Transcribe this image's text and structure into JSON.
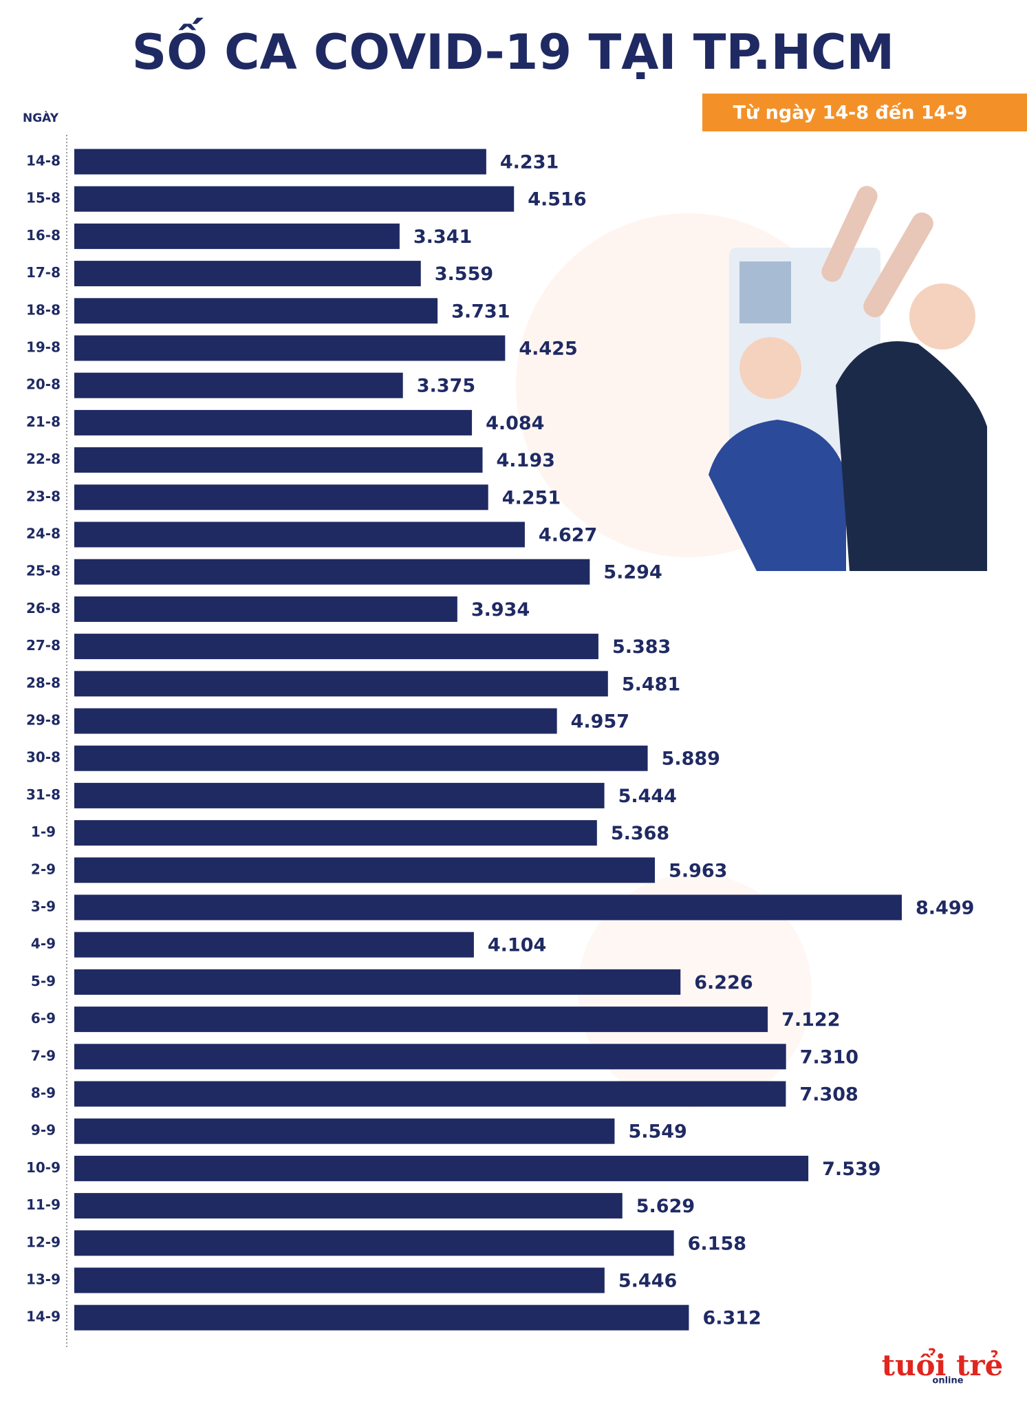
{
  "chart_data": {
    "type": "bar",
    "orientation": "horizontal",
    "title": "SỐ CA COVID-19 TẠI TP.HCM",
    "subtitle": "Từ ngày 14-8 đến 14-9",
    "category_axis_label": "NGÀY",
    "color": "#1f2a63",
    "categories": [
      "14-8",
      "15-8",
      "16-8",
      "17-8",
      "18-8",
      "19-8",
      "20-8",
      "21-8",
      "22-8",
      "23-8",
      "24-8",
      "25-8",
      "26-8",
      "27-8",
      "28-8",
      "29-8",
      "30-8",
      "31-8",
      "1-9",
      "2-9",
      "3-9",
      "4-9",
      "5-9",
      "6-9",
      "7-9",
      "8-9",
      "9-9",
      "10-9",
      "11-9",
      "12-9",
      "13-9",
      "14-9"
    ],
    "values": [
      4231,
      4516,
      3341,
      3559,
      3731,
      4425,
      3375,
      4084,
      4193,
      4251,
      4627,
      5294,
      3934,
      5383,
      5481,
      4957,
      5889,
      5444,
      5368,
      5963,
      8499,
      4104,
      6226,
      7122,
      7310,
      7308,
      5549,
      7539,
      5629,
      6158,
      5446,
      6312
    ],
    "value_labels": [
      "4.231",
      "4.516",
      "3.341",
      "3.559",
      "3.731",
      "4.425",
      "3.375",
      "4.084",
      "4.193",
      "4.251",
      "4.627",
      "5.294",
      "3.934",
      "5.383",
      "5.481",
      "4.957",
      "5.889",
      "5.444",
      "5.368",
      "5.963",
      "8.499",
      "4.104",
      "6.226",
      "7.122",
      "7.310",
      "7.308",
      "5.549",
      "7.539",
      "5.629",
      "6.158",
      "5.446",
      "6.312"
    ],
    "logo": {
      "main": "tuổi trẻ",
      "sub": "online"
    }
  }
}
